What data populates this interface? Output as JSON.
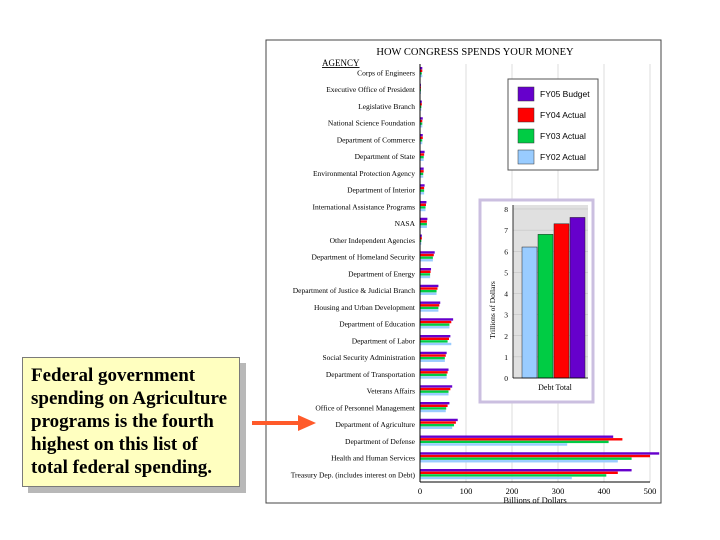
{
  "chart_data": {
    "type": "bar",
    "orientation": "horizontal",
    "title": "HOW CONGRESS SPENDS YOUR MONEY",
    "category_header": "AGENCY",
    "xlabel": "Billions of Dollars",
    "xlim": [
      0,
      500
    ],
    "xticks": [
      "0",
      "100",
      "200",
      "300",
      "400",
      "500"
    ],
    "categories": [
      "Corps of Engineers",
      "Executive Office of President",
      "Legislative Branch",
      "National Science Foundation",
      "Department of Commerce",
      "Department of State",
      "Environmental Protection Agency",
      "Department of Interior",
      "International Assistance Programs",
      "NASA",
      "Other Independent Agencies",
      "Department of Homeland Security",
      "Department of Energy",
      "Department of Justice & Judicial Branch",
      "Housing and Urban Development",
      "Department of Education",
      "Department of Labor",
      "Social Security Administration",
      "Department of Transportation",
      "Veterans Affairs",
      "Office of Personnel Management",
      "Department of Agriculture",
      "Department of Defense",
      "Health and Human Services",
      "Treasury Dep. (includes interest on Debt)"
    ],
    "series": [
      {
        "name": "FY05 Budget",
        "color": "#6600cc",
        "values": [
          5,
          2,
          4,
          6,
          6,
          10,
          8,
          10,
          14,
          16,
          4,
          32,
          24,
          40,
          44,
          72,
          66,
          58,
          62,
          70,
          64,
          82,
          420,
          520,
          460
        ]
      },
      {
        "name": "FY04 Actual",
        "color": "#ff0000",
        "values": [
          5,
          2,
          4,
          5,
          6,
          9,
          8,
          9,
          13,
          15,
          4,
          30,
          23,
          38,
          42,
          68,
          63,
          56,
          60,
          66,
          60,
          78,
          440,
          500,
          430
        ]
      },
      {
        "name": "FY03 Actual",
        "color": "#00cc44",
        "values": [
          4,
          2,
          3,
          5,
          5,
          8,
          7,
          9,
          12,
          15,
          3,
          28,
          22,
          36,
          40,
          64,
          60,
          54,
          58,
          62,
          57,
          74,
          410,
          460,
          405
        ]
      },
      {
        "name": "FY02 Actual",
        "color": "#99ccff",
        "values": [
          5,
          2,
          3,
          5,
          5,
          8,
          7,
          9,
          12,
          15,
          3,
          28,
          22,
          36,
          40,
          64,
          68,
          54,
          58,
          62,
          56,
          70,
          320,
          430,
          330
        ]
      }
    ],
    "legend_position": "top-right",
    "inset": {
      "type": "bar",
      "category": "Debt Total",
      "ylabel": "Trillions of Dollars",
      "ylim": [
        0,
        8
      ],
      "yticks": [
        "0",
        "1",
        "2",
        "3",
        "4",
        "5",
        "6",
        "7",
        "8"
      ],
      "values": [
        6.2,
        6.8,
        7.3,
        7.6
      ],
      "colors": [
        "#99ccff",
        "#00cc44",
        "#ff0000",
        "#6600cc"
      ]
    }
  },
  "callout": {
    "text": "Federal government spending on Agriculture programs is the fourth highest on this list of total federal spending."
  },
  "colors": {
    "arrow": "#ff5a2a",
    "callout_bg": "#ffffc0"
  }
}
